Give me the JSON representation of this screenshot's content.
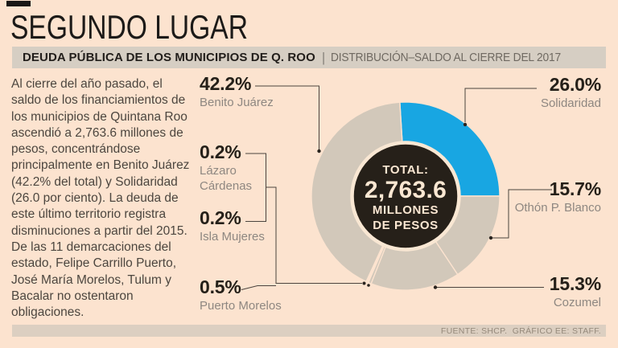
{
  "title": "SEGUNDO LUGAR",
  "subtitle": {
    "bold": "DEUDA PÚBLICA DE LOS MUNICIPIOS DE Q. ROO",
    "separator": "|",
    "light": "DISTRIBUCIÓN–SALDO AL CIERRE DEL 2017"
  },
  "paragraph": "Al cierre del año pasado, el\nsaldo de los financiamientos de\nlos municipios de Quintana Roo\nascendió a 2,763.6 millones de\npesos, concentrándose\nprincipalmente en Benito Juárez\n(42.2% del total) y Solidaridad\n(26.0 por ciento). La deuda de\neste último territorio registra\ndisminuciones a partir del 2015.\nDe las 11 demarcaciones del\nestado, Felipe Carrillo Puerto,\nJosé María Morelos, Tulum y\nBacalar no ostentaron\nobligaciones.",
  "chart_data": {
    "type": "pie",
    "title": "DEUDA PÚBLICA DE LOS MUNICIPIOS DE Q. ROO — DISTRIBUCIÓN–SALDO AL CIERRE DEL 2017",
    "unit": "%",
    "start_angle_deg": -3.5,
    "center_label": {
      "line1": "TOTAL:",
      "value": "2,763.6",
      "line3": "MILLONES",
      "line4": "DE PESOS"
    },
    "slices": [
      {
        "label": "Solidaridad",
        "value": 26.0,
        "display": "26.0%",
        "color": "#18a6e2"
      },
      {
        "label": "Othón P. Blanco",
        "value": 15.7,
        "display": "15.7%",
        "color": "#d2c8ba"
      },
      {
        "label": "Cozumel",
        "value": 15.3,
        "display": "15.3%",
        "color": "#d2c8ba"
      },
      {
        "label": "Puerto Morelos",
        "value": 0.5,
        "display": "0.5%",
        "color": "#d2c8ba"
      },
      {
        "label": "Isla Mujeres",
        "value": 0.2,
        "display": "0.2%",
        "color": "#d2c8ba"
      },
      {
        "label": "Lázaro Cárdenas",
        "value": 0.2,
        "display": "0.2%",
        "color": "#d2c8ba"
      },
      {
        "label": "Benito Juárez",
        "value": 42.2,
        "display": "42.2%",
        "color": "#d2c8ba"
      }
    ]
  },
  "colors": {
    "background": "#fce3cf",
    "accent_blue": "#18a6e2",
    "slice_beige": "#d2c8ba",
    "center_bg": "#262019",
    "center_ring": "#f9e7d3",
    "connector": "#4a443e",
    "bar_bg": "#d6cec3"
  },
  "footer": {
    "text": "FUENTE: SHCP.  GRÁFICO EE: STAFF."
  }
}
